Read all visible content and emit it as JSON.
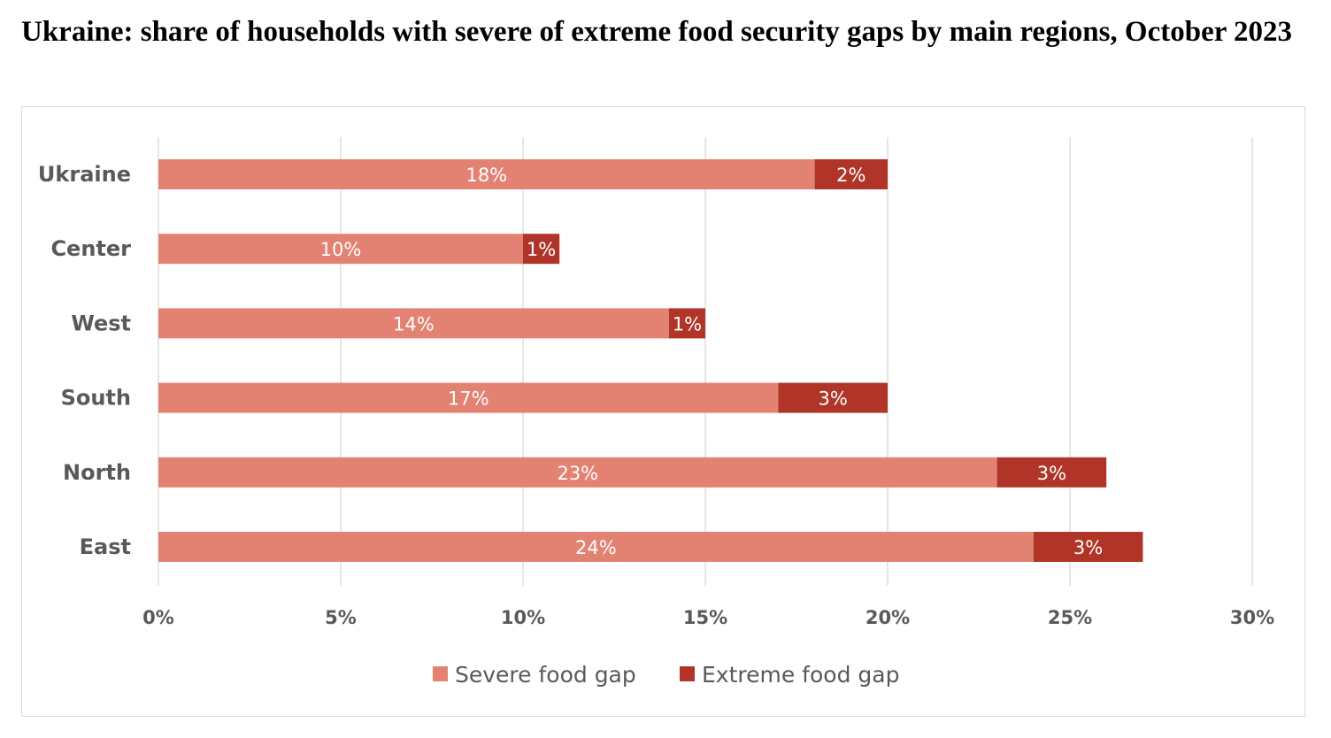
{
  "title": "Ukraine: share of households with severe of extreme food security gaps by main regions, October 2023",
  "colors": {
    "severe": "#e38273",
    "extreme": "#b03528",
    "grid": "#d9d9d9",
    "text": "#595959",
    "frame": "#d9d9d9"
  },
  "chart_data": {
    "type": "bar",
    "orientation": "horizontal",
    "stacked": true,
    "title": "Ukraine: share of households with severe of extreme food security gaps by main regions, October 2023",
    "xlabel": "",
    "ylabel": "",
    "categories": [
      "Ukraine",
      "Center",
      "West",
      "South",
      "North",
      "East"
    ],
    "series": [
      {
        "name": "Severe food gap",
        "color": "#e38273",
        "values": [
          18,
          10,
          14,
          17,
          23,
          24
        ],
        "labels": [
          "18%",
          "10%",
          "14%",
          "17%",
          "23%",
          "24%"
        ]
      },
      {
        "name": "Extreme food gap",
        "color": "#b03528",
        "values": [
          2,
          1,
          1,
          3,
          3,
          3
        ],
        "labels": [
          "2%",
          "1%",
          "1%",
          "3%",
          "3%",
          "3%"
        ]
      }
    ],
    "xlim": [
      0,
      30
    ],
    "xticks": [
      0,
      5,
      10,
      15,
      20,
      25,
      30
    ],
    "xtick_labels": [
      "0%",
      "5%",
      "10%",
      "15%",
      "20%",
      "25%",
      "30%"
    ],
    "grid": true,
    "legend_position": "bottom"
  }
}
